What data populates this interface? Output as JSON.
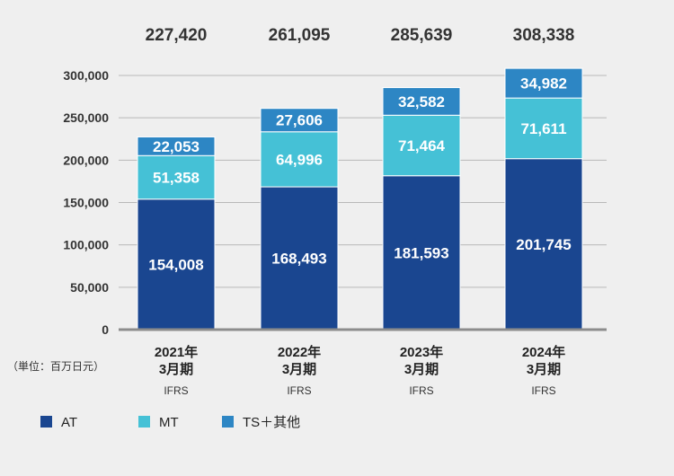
{
  "chart_data": {
    "type": "bar",
    "stacked": true,
    "categories": [
      [
        "2021年",
        "3月期",
        "IFRS"
      ],
      [
        "2022年",
        "3月期",
        "IFRS"
      ],
      [
        "2023年",
        "3月期",
        "IFRS"
      ],
      [
        "2024年",
        "3月期",
        "IFRS"
      ]
    ],
    "series": [
      {
        "name": "AT",
        "color": "#1a4690",
        "values": [
          154008,
          168493,
          181593,
          201745
        ],
        "labels": [
          "154,008",
          "168,493",
          "181,593",
          "201,745"
        ]
      },
      {
        "name": "MT",
        "color": "#45c1d6",
        "values": [
          51358,
          64996,
          71464,
          71611
        ],
        "labels": [
          "51,358",
          "64,996",
          "71,464",
          "71,611"
        ]
      },
      {
        "name": "TS＋其他",
        "color": "#2d86c4",
        "values": [
          22053,
          27606,
          32582,
          34982
        ],
        "labels": [
          "22,053",
          "27,606",
          "32,582",
          "34,982"
        ]
      }
    ],
    "totals": [
      227420,
      261095,
      285639,
      308338
    ],
    "total_labels": [
      "227,420",
      "261,095",
      "285,639",
      "308,338"
    ],
    "ylim": [
      0,
      300000
    ],
    "yticks": [
      0,
      50000,
      100000,
      150000,
      200000,
      250000,
      300000
    ],
    "ytick_labels": [
      "0",
      "50,000",
      "100,000",
      "150,000",
      "200,000",
      "250,000",
      "300,000"
    ],
    "unit_label": "（単位：百万日元）",
    "grid": true,
    "legend_position": "bottom-left"
  }
}
